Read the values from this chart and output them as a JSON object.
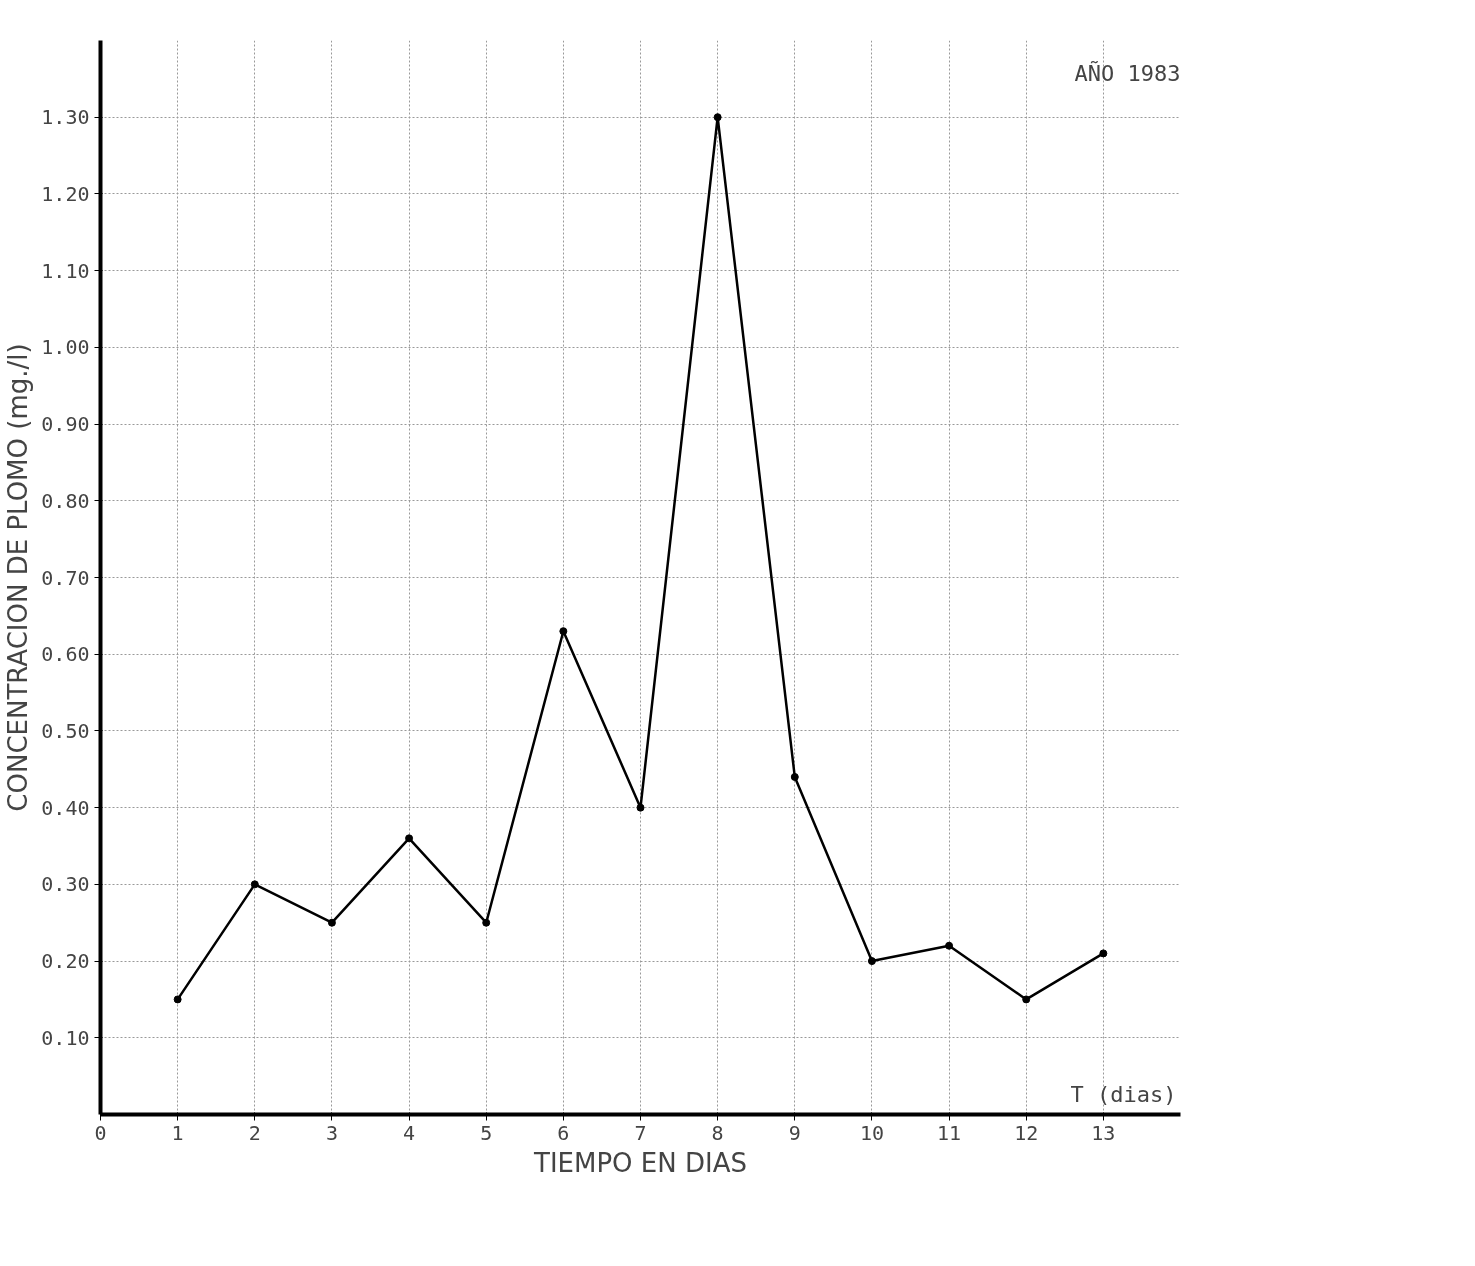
{
  "chart_data": {
    "type": "line",
    "xlabel": "TIEMPO EN DIAS",
    "ylabel": "CONCENTRACION DE PLOMO (mg./l)",
    "annotations": [
      "AÑO 1983",
      "T (dias)"
    ],
    "x": [
      1,
      2,
      3,
      4,
      5,
      6,
      7,
      8,
      9,
      10,
      11,
      12,
      13
    ],
    "series": [
      {
        "color": "#000000",
        "values": [
          0.15,
          0.3,
          0.25,
          0.36,
          0.25,
          0.63,
          0.4,
          1.3,
          0.44,
          0.2,
          0.22,
          0.15,
          0.21
        ]
      }
    ],
    "xlim": [
      0,
      14
    ],
    "ylim": [
      0,
      1.4
    ],
    "xticks": [
      0,
      1,
      2,
      3,
      4,
      5,
      6,
      7,
      8,
      9,
      10,
      11,
      12,
      13
    ],
    "yticks": [
      {
        "value": 0.1,
        "label": "0.10"
      },
      {
        "value": 0.2,
        "label": "0.20"
      },
      {
        "value": 0.3,
        "label": "0.30"
      },
      {
        "value": 0.4,
        "label": "0.40"
      },
      {
        "value": 0.5,
        "label": "0.50"
      },
      {
        "value": 0.6,
        "label": "0.60"
      },
      {
        "value": 0.7,
        "label": "0.70"
      },
      {
        "value": 0.8,
        "label": "0.80"
      },
      {
        "value": 0.9,
        "label": "0.90"
      },
      {
        "value": 1.0,
        "label": "1.00"
      },
      {
        "value": 1.1,
        "label": "1.10"
      },
      {
        "value": 1.2,
        "label": "1.20"
      },
      {
        "value": 1.3,
        "label": "1.30"
      }
    ],
    "grid": true,
    "marker": "circle",
    "line_style": "solid"
  }
}
